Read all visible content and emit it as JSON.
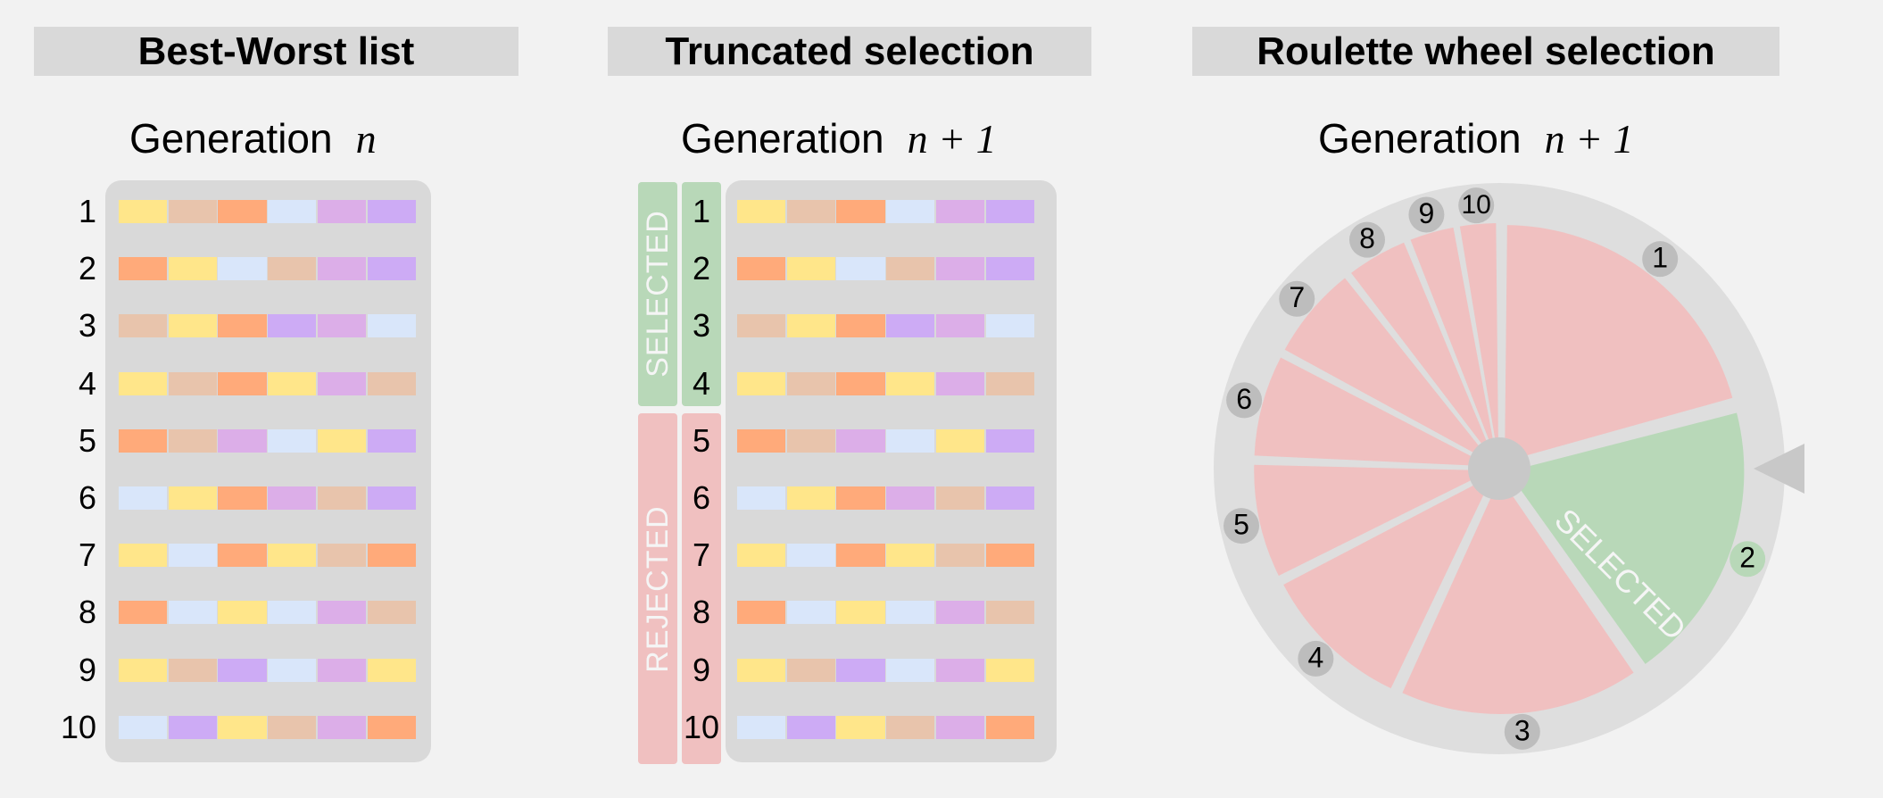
{
  "panels": {
    "best_worst": {
      "title": "Best-Worst list",
      "generation_label": "Generation",
      "generation_symbol": "n"
    },
    "truncated": {
      "title": "Truncated selection",
      "generation_label": "Generation",
      "generation_symbol": "n + 1",
      "selected_label": "SELECTED",
      "rejected_label": "REJECTED"
    },
    "roulette": {
      "title": "Roulette wheel selection",
      "generation_label": "Generation",
      "generation_symbol": "n + 1",
      "selected_label": "SELECTED"
    }
  },
  "gene_colors": {
    "Y": "#ffe68a",
    "T": "#e8c4ac",
    "O": "#ffaa7a",
    "B": "#d9e6fa",
    "P": "#dcaee8",
    "V": "#cdabf5"
  },
  "rank_labels": [
    "1",
    "2",
    "3",
    "4",
    "5",
    "6",
    "7",
    "8",
    "9",
    "10"
  ],
  "chromosomes": [
    [
      "Y",
      "T",
      "O",
      "B",
      "P",
      "V"
    ],
    [
      "O",
      "Y",
      "B",
      "T",
      "P",
      "V"
    ],
    [
      "T",
      "Y",
      "O",
      "V",
      "P",
      "B"
    ],
    [
      "Y",
      "T",
      "O",
      "Y",
      "P",
      "T"
    ],
    [
      "O",
      "T",
      "P",
      "B",
      "Y",
      "V"
    ],
    [
      "B",
      "Y",
      "O",
      "P",
      "T",
      "V"
    ],
    [
      "Y",
      "B",
      "O",
      "Y",
      "T",
      "O"
    ],
    [
      "O",
      "B",
      "Y",
      "B",
      "P",
      "T"
    ],
    [
      "Y",
      "T",
      "V",
      "B",
      "P",
      "Y"
    ],
    [
      "B",
      "V",
      "Y",
      "T",
      "P",
      "O"
    ]
  ],
  "selected_count": 4,
  "colors": {
    "selected": "#b8d8b8",
    "rejected": "#f0c0c0",
    "panel_bg": "#d9d9d9",
    "wheel_ring": "#dedede",
    "hub": "#c8c8c8",
    "badge": "#bdbdbd",
    "pointer": "#c8c8c8"
  },
  "wheel": {
    "selected_slice": "2",
    "slices": [
      {
        "label": "1",
        "start": 0,
        "end": 75
      },
      {
        "label": "2",
        "start": 75,
        "end": 145
      },
      {
        "label": "3",
        "start": 145,
        "end": 205
      },
      {
        "label": "4",
        "start": 205,
        "end": 243
      },
      {
        "label": "5",
        "start": 243,
        "end": 272
      },
      {
        "label": "6",
        "start": 272,
        "end": 298
      },
      {
        "label": "7",
        "start": 298,
        "end": 322
      },
      {
        "label": "8",
        "start": 322,
        "end": 338
      },
      {
        "label": "9",
        "start": 338,
        "end": 350
      },
      {
        "label": "10",
        "start": 350,
        "end": 360
      }
    ]
  }
}
